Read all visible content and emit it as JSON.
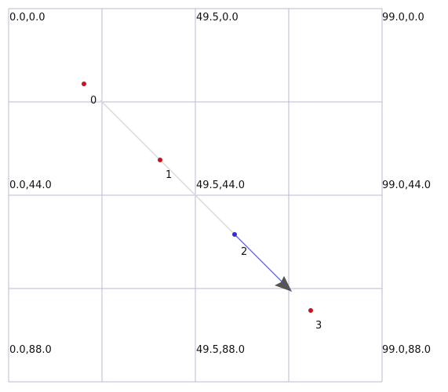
{
  "grid_labels": [
    "0.0,0.0",
    "49.5,0.0",
    "99.0,0.0",
    "0.0,44.0",
    "49.5,44.0",
    "99.0,44.0",
    "0.0,88.0",
    "49.5,88.0",
    "99.0,88.0"
  ],
  "nodes": [
    {
      "label": "0"
    },
    {
      "label": "1"
    },
    {
      "label": "2"
    },
    {
      "label": "3"
    }
  ]
}
